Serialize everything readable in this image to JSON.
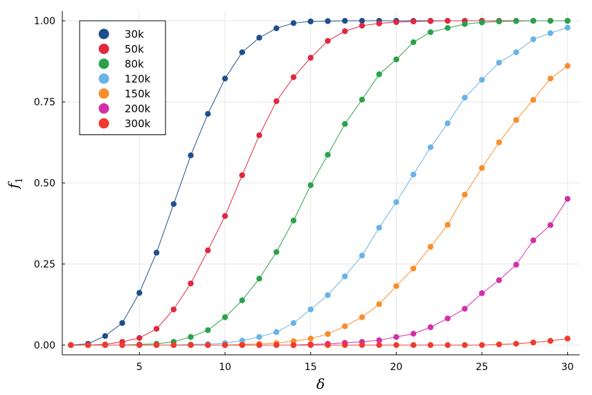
{
  "chart_data": {
    "type": "line",
    "xlabel": "δ",
    "ylabel": "f",
    "ylabel_subscript": "1",
    "xlim": [
      0.5,
      30.7
    ],
    "ylim": [
      -0.03,
      1.03
    ],
    "xticks": [
      5,
      10,
      15,
      20,
      25,
      30
    ],
    "yticks": [
      0.0,
      0.25,
      0.5,
      0.75,
      1.0
    ],
    "ytick_labels": [
      "0.00",
      "0.25",
      "0.50",
      "0.75",
      "1.00"
    ],
    "grid": true,
    "legend_position": "top-left",
    "markers": true,
    "x": [
      1,
      2,
      3,
      4,
      5,
      6,
      7,
      8,
      9,
      10,
      11,
      12,
      13,
      14,
      15,
      16,
      17,
      18,
      19,
      20,
      21,
      22,
      23,
      24,
      25,
      26,
      27,
      28,
      29,
      30
    ],
    "series": [
      {
        "name": "30k",
        "color": "#1f4e8c",
        "values": [
          0.0,
          0.004,
          0.028,
          0.068,
          0.161,
          0.285,
          0.435,
          0.585,
          0.713,
          0.822,
          0.903,
          0.948,
          0.977,
          0.993,
          0.998,
          0.999,
          1.0,
          1.0,
          1.0,
          1.0,
          1.0,
          1.0,
          1.0,
          1.0,
          1.0,
          1.0,
          1.0,
          1.0,
          1.0,
          1.0
        ]
      },
      {
        "name": "50k",
        "color": "#e0283f",
        "values": [
          0.0,
          0.0,
          0.002,
          0.01,
          0.022,
          0.05,
          0.11,
          0.19,
          0.292,
          0.398,
          0.524,
          0.647,
          0.752,
          0.826,
          0.886,
          0.938,
          0.968,
          0.985,
          0.992,
          0.996,
          0.998,
          0.999,
          1.0,
          1.0,
          1.0,
          1.0,
          1.0,
          1.0,
          1.0,
          1.0
        ]
      },
      {
        "name": "80k",
        "color": "#2aa24a",
        "values": [
          0.0,
          0.0,
          0.0,
          0.0,
          0.002,
          0.004,
          0.01,
          0.025,
          0.046,
          0.086,
          0.138,
          0.205,
          0.287,
          0.384,
          0.493,
          0.587,
          0.682,
          0.757,
          0.835,
          0.881,
          0.934,
          0.965,
          0.978,
          0.99,
          0.995,
          0.998,
          0.999,
          1.0,
          1.0,
          1.0
        ]
      },
      {
        "name": "120k",
        "color": "#69b3e7",
        "values": [
          0.0,
          0.0,
          0.0,
          0.0,
          0.0,
          0.0,
          0.0,
          0.002,
          0.003,
          0.006,
          0.014,
          0.025,
          0.04,
          0.068,
          0.11,
          0.154,
          0.212,
          0.276,
          0.362,
          0.441,
          0.526,
          0.61,
          0.684,
          0.763,
          0.818,
          0.871,
          0.903,
          0.943,
          0.962,
          0.979
        ]
      },
      {
        "name": "150k",
        "color": "#f98d2b",
        "values": [
          0.0,
          0.0,
          0.0,
          0.0,
          0.0,
          0.0,
          0.0,
          0.0,
          0.0,
          0.0,
          0.002,
          0.004,
          0.006,
          0.012,
          0.02,
          0.034,
          0.058,
          0.086,
          0.126,
          0.182,
          0.236,
          0.303,
          0.371,
          0.464,
          0.546,
          0.625,
          0.694,
          0.756,
          0.822,
          0.861
        ]
      },
      {
        "name": "200k",
        "color": "#d22fa8",
        "values": [
          0.0,
          0.0,
          0.0,
          0.0,
          0.0,
          0.0,
          0.0,
          0.0,
          0.0,
          0.0,
          0.0,
          0.0,
          0.0,
          0.0,
          0.002,
          0.004,
          0.007,
          0.01,
          0.015,
          0.025,
          0.035,
          0.055,
          0.082,
          0.112,
          0.16,
          0.2,
          0.248,
          0.323,
          0.37,
          0.451
        ]
      },
      {
        "name": "300k",
        "color": "#ef3a2d",
        "values": [
          0.0,
          0.0,
          0.0,
          0.0,
          0.0,
          0.0,
          0.0,
          0.0,
          0.0,
          0.0,
          0.0,
          0.0,
          0.0,
          0.0,
          0.0,
          0.0,
          0.0,
          0.0,
          0.0,
          0.0,
          0.0,
          0.0,
          0.0,
          0.0,
          0.0,
          0.002,
          0.004,
          0.008,
          0.013,
          0.02
        ]
      }
    ]
  }
}
